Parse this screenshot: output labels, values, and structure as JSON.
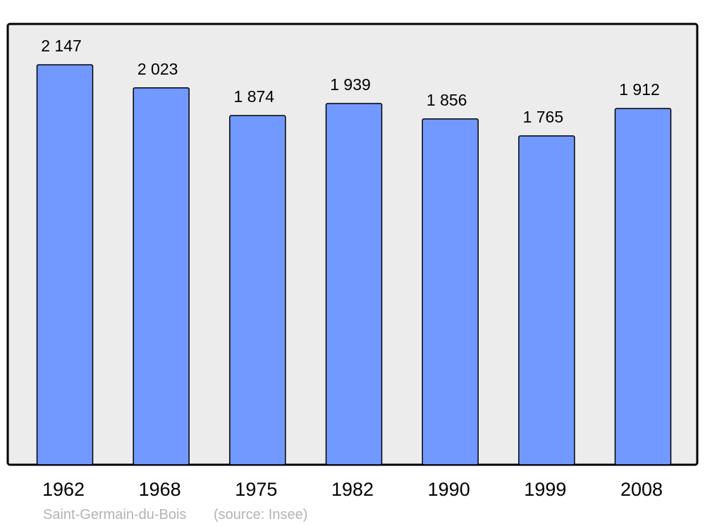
{
  "chart_data": {
    "type": "bar",
    "categories": [
      "1962",
      "1968",
      "1975",
      "1982",
      "1990",
      "1999",
      "2008"
    ],
    "values": [
      2147,
      2023,
      1874,
      1939,
      1856,
      1765,
      1912
    ],
    "value_labels": [
      "2 147",
      "2 023",
      "1 874",
      "1 939",
      "1 856",
      "1 765",
      "1 912"
    ],
    "title": "",
    "xlabel": "",
    "ylabel": "",
    "ylim": [
      0,
      2366
    ],
    "grid": false,
    "caption_place": "Saint-Germain-du-Bois",
    "caption_source": "(source: Insee)",
    "colors": {
      "bar": "#7199ff",
      "plot_background": "#ececec",
      "frame": "#000000",
      "caption": "#b3b3b3"
    }
  }
}
